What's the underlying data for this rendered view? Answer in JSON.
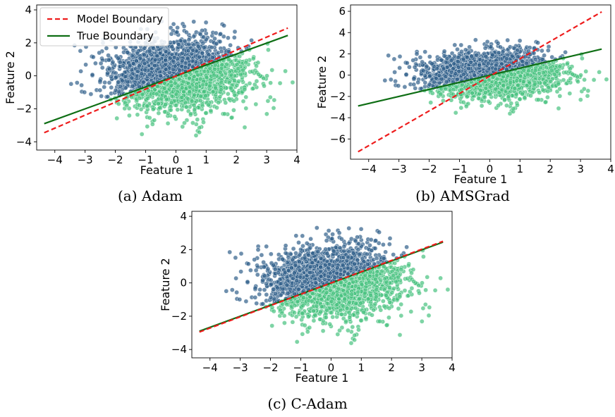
{
  "chart_data": [
    {
      "type": "scatter",
      "caption": "(a) Adam",
      "xlabel": "Feature 1",
      "ylabel": "Feature 2",
      "xlim": [
        -4.6,
        4.0
      ],
      "ylim": [
        -4.5,
        4.3
      ],
      "xticks": [
        -4,
        -3,
        -2,
        -1,
        0,
        1,
        2,
        3,
        4
      ],
      "yticks": [
        -4,
        -2,
        0,
        2,
        4
      ],
      "legend": {
        "placement": "top-left",
        "entries": [
          "Model Boundary",
          "True Boundary"
        ]
      },
      "series": [
        {
          "name": "Model Boundary",
          "kind": "line",
          "style": "dashed",
          "color": "#ee1c1c",
          "x": [
            -4.35,
            3.7
          ],
          "y": [
            -3.45,
            2.9
          ]
        },
        {
          "name": "True Boundary",
          "kind": "line",
          "style": "solid",
          "color": "#0e6e14",
          "x": [
            -4.35,
            3.7
          ],
          "y": [
            -2.9,
            2.45
          ]
        }
      ]
    },
    {
      "type": "scatter",
      "caption": "(b) AMSGrad",
      "xlabel": "Feature 1",
      "ylabel": "Feature 2",
      "xlim": [
        -4.6,
        4.0
      ],
      "ylim": [
        -7.9,
        6.6
      ],
      "xticks": [
        -4,
        -3,
        -2,
        -1,
        0,
        1,
        2,
        3,
        4
      ],
      "yticks": [
        -6,
        -4,
        -2,
        0,
        2,
        4,
        6
      ],
      "series": [
        {
          "name": "Model Boundary",
          "kind": "line",
          "style": "dashed",
          "color": "#ee1c1c",
          "x": [
            -4.35,
            3.7
          ],
          "y": [
            -7.2,
            5.95
          ]
        },
        {
          "name": "True Boundary",
          "kind": "line",
          "style": "solid",
          "color": "#0e6e14",
          "x": [
            -4.35,
            3.7
          ],
          "y": [
            -2.9,
            2.45
          ]
        }
      ]
    },
    {
      "type": "scatter",
      "caption": "(c) C-Adam",
      "xlabel": "Feature 1",
      "ylabel": "Feature 2",
      "xlim": [
        -4.6,
        4.0
      ],
      "ylim": [
        -4.5,
        4.3
      ],
      "xticks": [
        -4,
        -3,
        -2,
        -1,
        0,
        1,
        2,
        3,
        4
      ],
      "yticks": [
        -4,
        -2,
        0,
        2,
        4
      ],
      "series": [
        {
          "name": "Model Boundary",
          "kind": "line",
          "style": "dashed",
          "color": "#ee1c1c",
          "x": [
            -4.35,
            3.7
          ],
          "y": [
            -2.95,
            2.5
          ]
        },
        {
          "name": "True Boundary",
          "kind": "line",
          "style": "solid",
          "color": "#0e6e14",
          "x": [
            -4.35,
            3.7
          ],
          "y": [
            -2.9,
            2.45
          ]
        }
      ]
    }
  ],
  "colors": {
    "class_above": "#31608a",
    "class_below": "#47c27f",
    "point_edge": "#ffffff"
  }
}
